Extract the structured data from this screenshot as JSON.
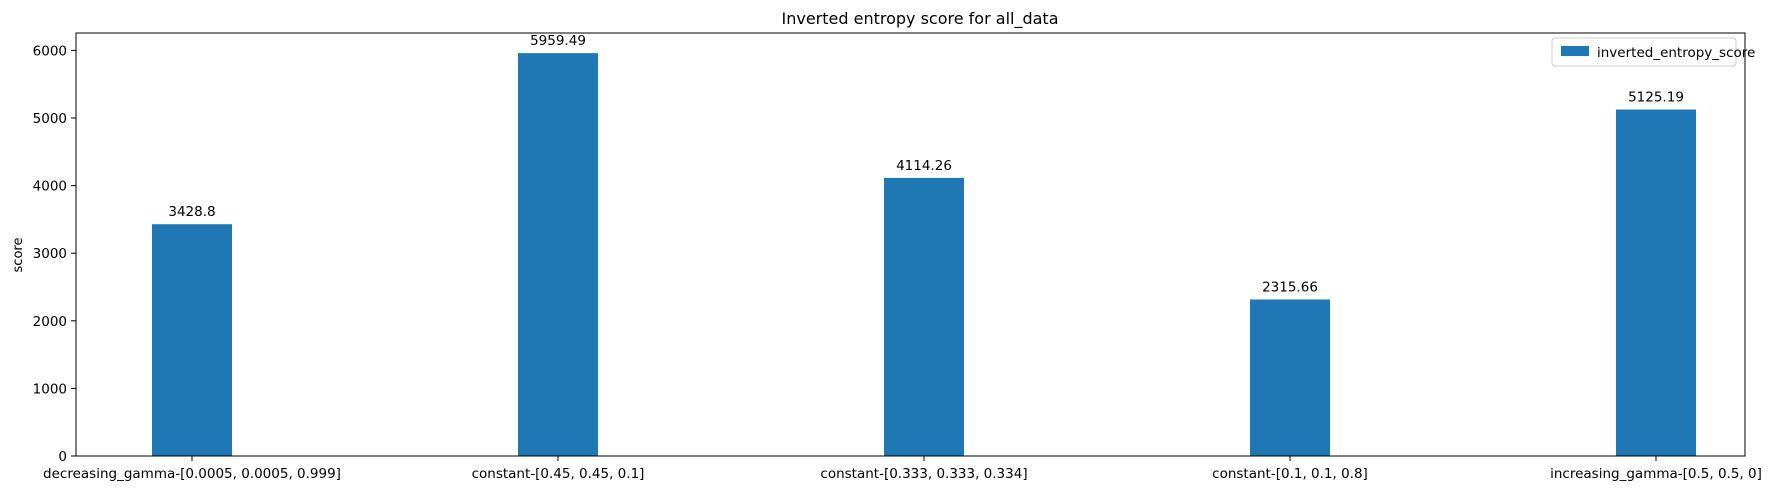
{
  "chart_data": {
    "type": "bar",
    "title": "Inverted entropy score for all_data",
    "xlabel": "",
    "ylabel": "score",
    "categories": [
      "decreasing_gamma-[0.0005, 0.0005, 0.999]",
      "constant-[0.45, 0.45, 0.1]",
      "constant-[0.333, 0.333, 0.334]",
      "constant-[0.1, 0.1, 0.8]",
      "increasing_gamma-[0.5, 0.5, 0]"
    ],
    "series": [
      {
        "name": "inverted_entropy_score",
        "color": "#1f77b4",
        "values": [
          3428.8,
          5959.49,
          4114.26,
          2315.66,
          5125.19
        ],
        "labels": [
          "3428.8",
          "5959.49",
          "4114.26",
          "2315.66",
          "5125.19"
        ]
      }
    ],
    "ylim": [
      0,
      6257.5
    ],
    "yticks": [
      0,
      1000,
      2000,
      3000,
      4000,
      5000,
      6000
    ],
    "grid": false,
    "legend_position": "top-right"
  }
}
